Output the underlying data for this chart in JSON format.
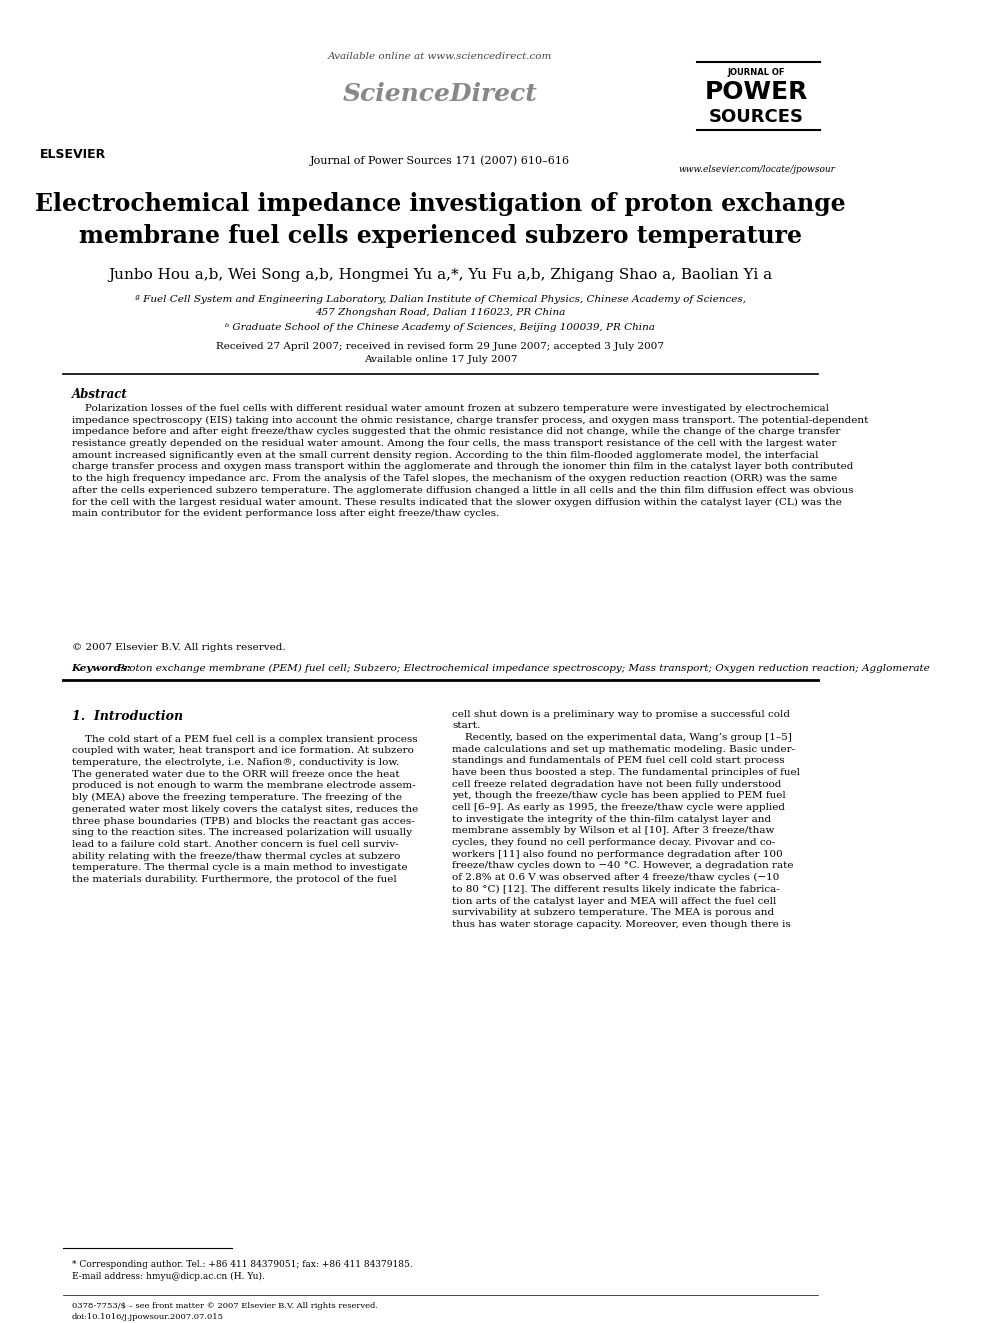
{
  "bg_color": "#ffffff",
  "title": "Electrochemical impedance investigation of proton exchange\nmembrane fuel cells experienced subzero temperature",
  "authors": "Junbo Hou a,b, Wei Song a,b, Hongmei Yu a,*, Yu Fu a,b, Zhigang Shao a, Baolian Yi a",
  "affil_a": "ª Fuel Cell System and Engineering Laboratory, Dalian Institute of Chemical Physics, Chinese Academy of Sciences,",
  "affil_a2": "457 Zhongshan Road, Dalian 116023, PR China",
  "affil_b": "ᵇ Graduate School of the Chinese Academy of Sciences, Beijing 100039, PR China",
  "received": "Received 27 April 2007; received in revised form 29 June 2007; accepted 3 July 2007",
  "available": "Available online 17 July 2007",
  "header_available": "Available online at www.sciencedirect.com",
  "journal_ref": "Journal of Power Sources 171 (2007) 610–616",
  "elsevier_url": "www.elsevier.com/locate/jpowsour",
  "abstract_title": "Abstract",
  "abstract_text": "    Polarization losses of the fuel cells with different residual water amount frozen at subzero temperature were investigated by electrochemical\nimpedance spectroscopy (EIS) taking into account the ohmic resistance, charge transfer process, and oxygen mass transport. The potential-dependent\nimpedance before and after eight freeze/thaw cycles suggested that the ohmic resistance did not change, while the change of the charge transfer\nresistance greatly depended on the residual water amount. Among the four cells, the mass transport resistance of the cell with the largest water\namount increased significantly even at the small current density region. According to the thin film-flooded agglomerate model, the interfacial\ncharge transfer process and oxygen mass transport within the agglomerate and through the ionomer thin film in the catalyst layer both contributed\nto the high frequency impedance arc. From the analysis of the Tafel slopes, the mechanism of the oxygen reduction reaction (ORR) was the same\nafter the cells experienced subzero temperature. The agglomerate diffusion changed a little in all cells and the thin film diffusion effect was obvious\nfor the cell with the largest residual water amount. These results indicated that the slower oxygen diffusion within the catalyst layer (CL) was the\nmain contributor for the evident performance loss after eight freeze/thaw cycles.",
  "copyright": "© 2007 Elsevier B.V. All rights reserved.",
  "keywords_label": "Keywords:",
  "keywords_text": " Proton exchange membrane (PEM) fuel cell; Subzero; Electrochemical impedance spectroscopy; Mass transport; Oxygen reduction reaction; Agglomerate",
  "intro_heading": "1.  Introduction",
  "intro_col1": "    The cold start of a PEM fuel cell is a complex transient process\ncoupled with water, heat transport and ice formation. At subzero\ntemperature, the electrolyte, i.e. Nafion®, conductivity is low.\nThe generated water due to the ORR will freeze once the heat\nproduced is not enough to warm the membrane electrode assem-\nbly (MEA) above the freezing temperature. The freezing of the\ngenerated water most likely covers the catalyst sites, reduces the\nthree phase boundaries (TPB) and blocks the reactant gas acces-\nsing to the reaction sites. The increased polarization will usually\nlead to a failure cold start. Another concern is fuel cell surviv-\nability relating with the freeze/thaw thermal cycles at subzero\ntemperature. The thermal cycle is a main method to investigate\nthe materials durability. Furthermore, the protocol of the fuel",
  "intro_col2": "cell shut down is a preliminary way to promise a successful cold\nstart.\n    Recently, based on the experimental data, Wang’s group [1–5]\nmade calculations and set up mathematic modeling. Basic under-\nstandings and fundamentals of PEM fuel cell cold start process\nhave been thus boosted a step. The fundamental principles of fuel\ncell freeze related degradation have not been fully understood\nyet, though the freeze/thaw cycle has been applied to PEM fuel\ncell [6–9]. As early as 1995, the freeze/thaw cycle were applied\nto investigate the integrity of the thin-film catalyst layer and\nmembrane assembly by Wilson et al [10]. After 3 freeze/thaw\ncycles, they found no cell performance decay. Pivovar and co-\nworkers [11] also found no performance degradation after 100\nfreeze/thaw cycles down to −40 °C. However, a degradation rate\nof 2.8% at 0.6 V was observed after 4 freeze/thaw cycles (−10\nto 80 °C) [12]. The different results likely indicate the fabrica-\ntion arts of the catalyst layer and MEA will affect the fuel cell\nsurvivability at subzero temperature. The MEA is porous and\nthus has water storage capacity. Moreover, even though there is",
  "footnote_star": "* Corresponding author. Tel.: +86 411 84379051; fax: +86 411 84379185.",
  "footnote_email": "E-mail address: hmyu@dicp.ac.cn (H. Yu).",
  "footer_issn": "0378-7753/$ – see front matter © 2007 Elsevier B.V. All rights reserved.",
  "footer_doi": "doi:10.1016/j.jpowsour.2007.07.015"
}
